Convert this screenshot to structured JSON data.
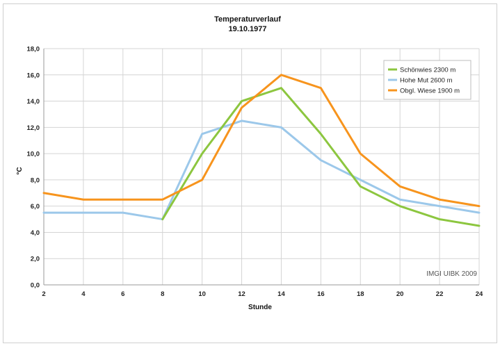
{
  "chart_data": {
    "type": "line",
    "title": "Temperaturverlauf",
    "subtitle": "19.10.1977",
    "xlabel": "Stunde",
    "ylabel": "°C",
    "x": [
      2,
      4,
      6,
      8,
      10,
      12,
      14,
      16,
      18,
      20,
      22,
      24
    ],
    "x_ticks": [
      "2",
      "4",
      "6",
      "8",
      "10",
      "12",
      "14",
      "16",
      "18",
      "20",
      "22",
      "24"
    ],
    "xlim": [
      2,
      24
    ],
    "ylim": [
      0,
      18
    ],
    "y_ticks": [
      "0,0",
      "2,0",
      "4,0",
      "6,0",
      "8,0",
      "10,0",
      "12,0",
      "14,0",
      "16,0",
      "18,0"
    ],
    "grid": true,
    "legend_position": "top-right",
    "series": [
      {
        "name": "Schönwies 2300 m",
        "color": "#8cc63f",
        "values": [
          null,
          null,
          null,
          5.0,
          10.0,
          14.0,
          15.0,
          11.5,
          7.5,
          6.0,
          5.0,
          4.5
        ]
      },
      {
        "name": "Hohe Mut 2600 m",
        "color": "#9cc8ea",
        "values": [
          5.5,
          5.5,
          5.5,
          5.0,
          11.5,
          12.5,
          12.0,
          9.5,
          8.0,
          6.5,
          6.0,
          5.5
        ]
      },
      {
        "name": "Obgl. Wiese 1900 m",
        "color": "#f7941d",
        "values": [
          7.0,
          6.5,
          6.5,
          6.5,
          8.0,
          13.5,
          16.0,
          15.0,
          10.0,
          7.5,
          6.5,
          6.0
        ]
      }
    ],
    "annotation": "IMGI UIBK 2009"
  }
}
